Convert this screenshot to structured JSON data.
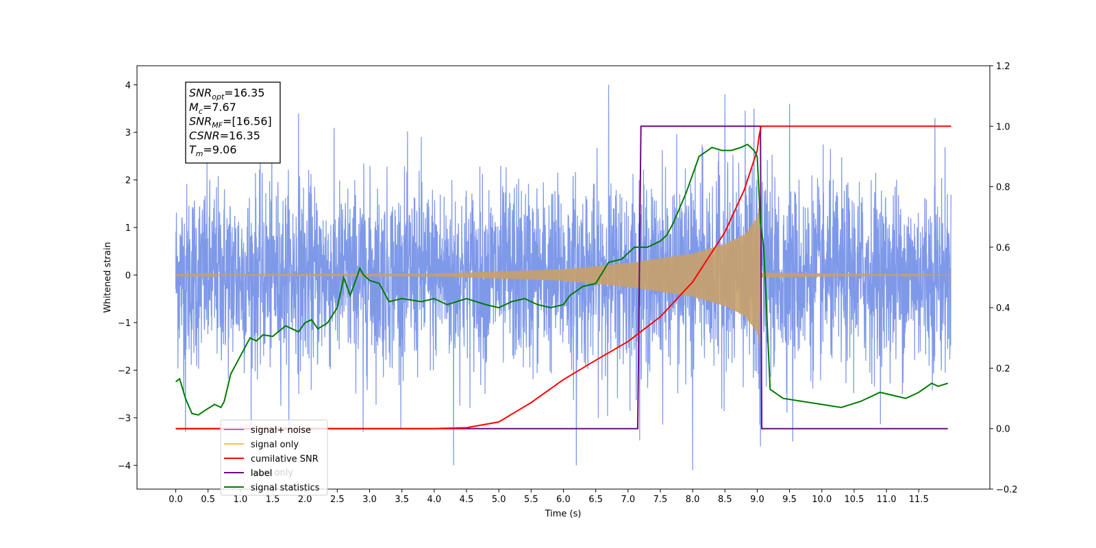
{
  "chart_data": {
    "type": "line",
    "xlabel": "Time (s)",
    "ylabel": "Whitened strain",
    "xlim": [
      -0.6,
      12.6
    ],
    "ylim": [
      -4.5,
      4.4
    ],
    "y2lim": [
      -0.2,
      1.2
    ],
    "x_ticks": [
      "0.0",
      "0.5",
      "1.0",
      "1.5",
      "2.0",
      "2.5",
      "3.0",
      "3.5",
      "4.0",
      "4.5",
      "5.0",
      "5.5",
      "6.0",
      "6.5",
      "7.0",
      "7.5",
      "8.0",
      "8.5",
      "9.0",
      "9.5",
      "10.0",
      "10.5",
      "11.0",
      "11.5"
    ],
    "x_tick_values": [
      0.0,
      0.5,
      1.0,
      1.5,
      2.0,
      2.5,
      3.0,
      3.5,
      4.0,
      4.5,
      5.0,
      5.5,
      6.0,
      6.5,
      7.0,
      7.5,
      8.0,
      8.5,
      9.0,
      9.5,
      10.0,
      10.5,
      11.0,
      11.5
    ],
    "y_ticks": [
      "4",
      "3",
      "2",
      "1",
      "0",
      "−1",
      "−2",
      "−3",
      "−4"
    ],
    "y_tick_values": [
      4,
      3,
      2,
      1,
      0,
      -1,
      -2,
      -3,
      -4
    ],
    "y2_ticks": [
      "1.2",
      "1.0",
      "0.8",
      "0.6",
      "0.4",
      "0.2",
      "0.0",
      "−0.2"
    ],
    "y2_tick_values": [
      1.2,
      1.0,
      0.8,
      0.6,
      0.4,
      0.2,
      0.0,
      -0.2
    ],
    "annotation_lines": [
      {
        "base": "SNR",
        "sub": "opt",
        "rest": "=16.35"
      },
      {
        "base": "M",
        "sub": "c",
        "rest": "=7.67"
      },
      {
        "base": "SNR",
        "sub": "MF",
        "rest": "=[16.56]"
      },
      {
        "base": "CSNR",
        "sub": "",
        "rest": "=16.35"
      },
      {
        "base": "T",
        "sub": "m",
        "rest": "=9.06"
      }
    ],
    "legend_position": "lower-left",
    "legend": [
      {
        "label": "signal+ noise",
        "color": "#6f8fe6"
      },
      {
        "label": "signal only",
        "color": "#ffc04d"
      },
      {
        "label": "cumilative SNR",
        "color": "#ff0000"
      },
      {
        "label": "label",
        "color": "#6a0a80"
      },
      {
        "label": "signal statistics",
        "color": "#007a00"
      }
    ],
    "hidden_legend_text": "label only",
    "series": [
      {
        "name": "signal+ noise",
        "axis": "left",
        "color": "#7894e8",
        "description_type": "noise",
        "x_range": [
          0.0,
          12.0
        ],
        "envelope_typical": 1.6,
        "peak_spikes": [
          [
            1.9,
            3.4
          ],
          [
            3.8,
            2.9
          ],
          [
            6.7,
            4.0
          ],
          [
            8.5,
            3.8
          ],
          [
            8.95,
            3.5
          ],
          [
            9.5,
            3.6
          ],
          [
            11.75,
            3.3
          ],
          [
            4.3,
            -4.0
          ],
          [
            6.2,
            -4.0
          ],
          [
            8.0,
            -4.1
          ],
          [
            9.05,
            -3.6
          ],
          [
            9.55,
            -3.5
          ],
          [
            2.9,
            -3.3
          ],
          [
            0.15,
            -3.3
          ]
        ]
      },
      {
        "name": "signal only",
        "axis": "left",
        "color": "#c9a06a",
        "description_type": "chirp",
        "amplitude_points": [
          [
            0.0,
            0.01
          ],
          [
            4.0,
            0.03
          ],
          [
            6.0,
            0.12
          ],
          [
            7.0,
            0.25
          ],
          [
            8.0,
            0.45
          ],
          [
            8.5,
            0.65
          ],
          [
            8.8,
            0.85
          ],
          [
            9.0,
            1.2
          ],
          [
            9.03,
            1.5
          ],
          [
            9.06,
            0.05
          ],
          [
            12.0,
            0.0
          ]
        ]
      },
      {
        "name": "cumilative SNR",
        "axis": "right",
        "color": "#ff0000",
        "x": [
          0.0,
          4.0,
          4.5,
          5.0,
          5.5,
          6.0,
          6.5,
          7.0,
          7.5,
          8.0,
          8.5,
          8.8,
          9.0,
          9.03,
          9.06,
          12.0
        ],
        "values": [
          0.0,
          0.0,
          0.003,
          0.022,
          0.086,
          0.162,
          0.226,
          0.288,
          0.37,
          0.485,
          0.65,
          0.79,
          0.92,
          0.97,
          1.0,
          1.0
        ]
      },
      {
        "name": "label",
        "axis": "right",
        "color": "#6a0a80",
        "x": [
          0.0,
          7.15,
          7.2,
          9.05,
          9.07,
          11.95
        ],
        "values": [
          0.0,
          0.0,
          1.0,
          1.0,
          0.0,
          0.0
        ]
      },
      {
        "name": "signal statistics",
        "axis": "right",
        "color": "#007a00",
        "x": [
          0.0,
          0.06,
          0.15,
          0.25,
          0.35,
          0.45,
          0.6,
          0.7,
          0.75,
          0.85,
          0.95,
          1.05,
          1.15,
          1.25,
          1.35,
          1.5,
          1.7,
          1.9,
          2.0,
          2.1,
          2.2,
          2.35,
          2.5,
          2.6,
          2.7,
          2.85,
          2.9,
          3.0,
          3.15,
          3.3,
          3.5,
          3.8,
          4.0,
          4.2,
          4.5,
          4.8,
          5.0,
          5.2,
          5.4,
          5.6,
          5.8,
          6.0,
          6.1,
          6.3,
          6.5,
          6.7,
          6.9,
          7.1,
          7.3,
          7.5,
          7.6,
          7.7,
          7.9,
          8.1,
          8.3,
          8.45,
          8.6,
          8.75,
          8.85,
          8.95,
          9.0,
          9.05,
          9.1,
          9.2,
          9.4,
          9.7,
          10.0,
          10.3,
          10.6,
          10.9,
          11.1,
          11.3,
          11.5,
          11.7,
          11.8,
          11.95
        ],
        "values": [
          0.155,
          0.165,
          0.1,
          0.05,
          0.045,
          0.06,
          0.08,
          0.07,
          0.09,
          0.18,
          0.22,
          0.26,
          0.3,
          0.29,
          0.31,
          0.305,
          0.34,
          0.32,
          0.35,
          0.36,
          0.33,
          0.35,
          0.4,
          0.5,
          0.44,
          0.53,
          0.51,
          0.49,
          0.48,
          0.42,
          0.43,
          0.42,
          0.43,
          0.41,
          0.43,
          0.41,
          0.4,
          0.42,
          0.43,
          0.41,
          0.4,
          0.41,
          0.44,
          0.47,
          0.48,
          0.55,
          0.56,
          0.6,
          0.6,
          0.62,
          0.64,
          0.68,
          0.78,
          0.9,
          0.93,
          0.92,
          0.92,
          0.93,
          0.94,
          0.92,
          0.9,
          0.68,
          0.6,
          0.13,
          0.1,
          0.09,
          0.08,
          0.07,
          0.09,
          0.12,
          0.11,
          0.1,
          0.12,
          0.15,
          0.14,
          0.15
        ]
      }
    ]
  }
}
